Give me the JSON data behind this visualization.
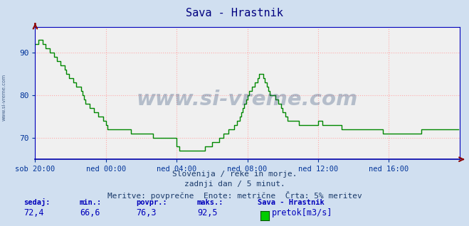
{
  "title": "Sava - Hrastnik",
  "title_color": "#000080",
  "bg_color": "#d0dff0",
  "plot_bg_color": "#f0f0f0",
  "line_color": "#008800",
  "line_width": 1.0,
  "ylim": [
    65,
    96
  ],
  "yticks": [
    70,
    80,
    90
  ],
  "grid_color": "#ffaaaa",
  "grid_style": ":",
  "watermark": "www.si-vreme.com",
  "watermark_color": "#1a3a6a",
  "watermark_alpha": 0.28,
  "tick_color": "#003399",
  "axis_color": "#0000bb",
  "footer_line1": "Slovenija / reke in morje.",
  "footer_line2": "zadnji dan / 5 minut.",
  "footer_line3": "Meritve: povprečne  Enote: metrične  Črta: 5% meritev",
  "footer_color": "#1a3a6a",
  "footer_fontsize": 8,
  "legend_title": "Sava - Hrastnik",
  "legend_label": "pretok[m3/s]",
  "legend_color": "#00cc00",
  "stats_sedaj": "72,4",
  "stats_min": "66,6",
  "stats_povpr": "76,3",
  "stats_maks": "92,5",
  "xtick_labels": [
    "sob 20:00",
    "ned 00:00",
    "ned 04:00",
    "ned 08:00",
    "ned 12:00",
    "ned 16:00"
  ],
  "xtick_positions": [
    0,
    48,
    96,
    144,
    192,
    240
  ],
  "total_points": 288,
  "y_data": [
    92,
    92,
    93,
    93,
    93,
    92,
    92,
    91,
    91,
    91,
    90,
    90,
    90,
    89,
    89,
    88,
    88,
    87,
    87,
    87,
    86,
    85,
    85,
    84,
    84,
    84,
    83,
    83,
    82,
    82,
    82,
    81,
    80,
    79,
    78,
    78,
    78,
    77,
    77,
    77,
    76,
    76,
    76,
    75,
    75,
    75,
    74,
    74,
    73,
    72,
    72,
    72,
    72,
    72,
    72,
    72,
    72,
    72,
    72,
    72,
    72,
    72,
    72,
    72,
    72,
    71,
    71,
    71,
    71,
    71,
    71,
    71,
    71,
    71,
    71,
    71,
    71,
    71,
    71,
    71,
    70,
    70,
    70,
    70,
    70,
    70,
    70,
    70,
    70,
    70,
    70,
    70,
    70,
    70,
    70,
    70,
    68,
    68,
    67,
    67,
    67,
    67,
    67,
    67,
    67,
    67,
    67,
    67,
    67,
    67,
    67,
    67,
    67,
    67,
    67,
    68,
    68,
    68,
    68,
    68,
    69,
    69,
    69,
    69,
    69,
    70,
    70,
    70,
    71,
    71,
    71,
    72,
    72,
    72,
    72,
    73,
    73,
    74,
    74,
    75,
    76,
    77,
    78,
    79,
    80,
    81,
    81,
    82,
    82,
    83,
    83,
    84,
    85,
    85,
    85,
    84,
    83,
    82,
    81,
    80,
    80,
    80,
    80,
    79,
    79,
    78,
    78,
    77,
    76,
    76,
    75,
    74,
    74,
    74,
    74,
    74,
    74,
    74,
    74,
    73,
    73,
    73,
    73,
    73,
    73,
    73,
    73,
    73,
    73,
    73,
    73,
    73,
    74,
    74,
    74,
    73,
    73,
    73,
    73,
    73,
    73,
    73,
    73,
    73,
    73,
    73,
    73,
    73,
    72,
    72,
    72,
    72,
    72,
    72,
    72,
    72,
    72,
    72,
    72,
    72,
    72,
    72,
    72,
    72,
    72,
    72,
    72,
    72,
    72,
    72,
    72,
    72,
    72,
    72,
    72,
    72,
    71,
    71,
    71,
    71,
    71,
    71,
    71,
    71,
    71,
    71,
    71,
    71,
    71,
    71,
    71,
    71,
    71,
    71,
    71,
    71,
    71,
    71,
    71,
    71,
    71,
    71,
    72,
    72,
    72,
    72,
    72,
    72,
    72,
    72,
    72,
    72,
    72,
    72,
    72,
    72,
    72,
    72,
    72,
    72,
    72,
    72,
    72,
    72,
    72,
    72,
    72,
    72
  ]
}
